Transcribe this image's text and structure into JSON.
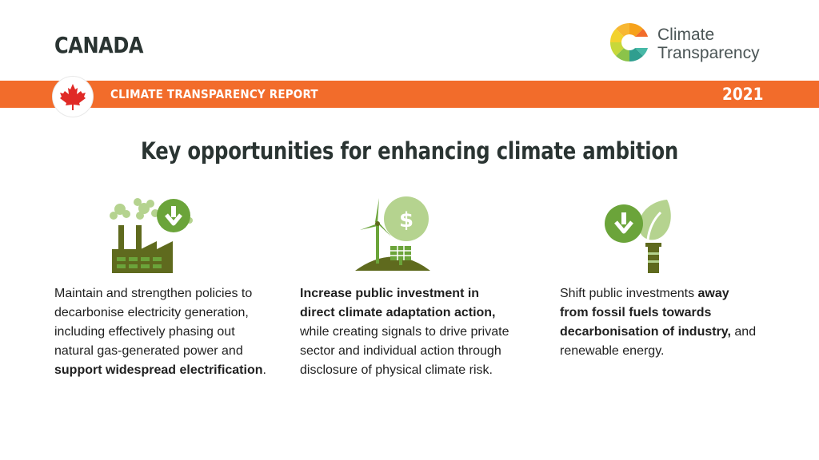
{
  "header": {
    "country": "CANADA",
    "brand_line1": "Climate",
    "brand_line2": "Transparency"
  },
  "banner": {
    "title": "CLIMATE TRANSPARENCY REPORT",
    "year": "2021",
    "color": "#f26c2b"
  },
  "headline": "Key opportunities for enhancing climate ambition",
  "opportunities": [
    {
      "icon": "factory-decrease-icon",
      "text_a": "Maintain and strengthen policies to decarbonise electricity generation, including effectively phasing out natural gas-generated power and ",
      "bold_a": "support widespread electrification",
      "text_b": "."
    },
    {
      "icon": "wind-solar-investment-icon",
      "bold_a": "Increase public investment in direct climate adaptation action,",
      "text_a": " while creating signals to drive private sector and individual action through disclosure of physical climate risk."
    },
    {
      "icon": "chimney-leaf-decrease-icon",
      "text_a": "Shift public investments ",
      "bold_a": "away from fossil fuels towards decarbonisation of industry,",
      "text_b": " and renewable energy."
    }
  ],
  "colors": {
    "dark_green": "#5f6a1e",
    "mid_green": "#6ba43a",
    "light_green": "#b5d38f",
    "title_text": "#2a3432"
  }
}
